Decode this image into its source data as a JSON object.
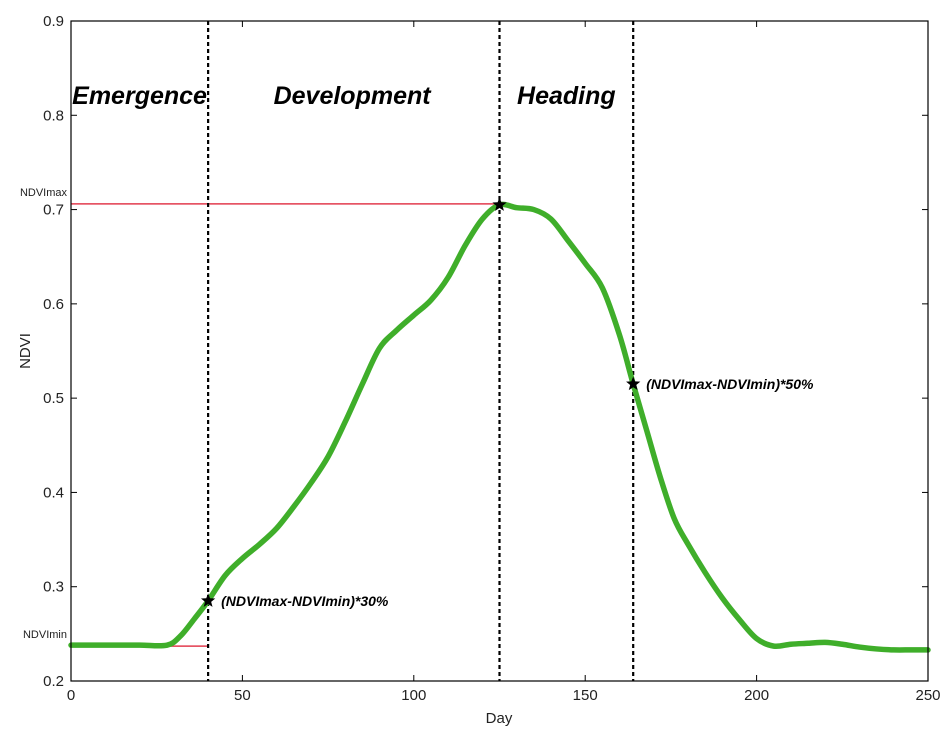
{
  "chart_data": {
    "type": "line",
    "title": "",
    "xlabel": "Day",
    "ylabel": "NDVI",
    "xlim": [
      0,
      250
    ],
    "ylim": [
      0.2,
      0.9
    ],
    "xticks": [
      0,
      50,
      100,
      150,
      200,
      250
    ],
    "yticks": [
      0.2,
      0.3,
      0.4,
      0.5,
      0.6,
      0.7,
      0.8,
      0.9
    ],
    "x_tick_labels": [
      "0",
      "50",
      "100",
      "150",
      "200",
      "250"
    ],
    "y_tick_labels": [
      "0.2",
      "0.3",
      "0.4",
      "0.5",
      "0.6",
      "0.7",
      "0.8",
      "0.9"
    ],
    "grid": false,
    "series": [
      {
        "color": "#3fae2a",
        "x": [
          0,
          10,
          20,
          28,
          32,
          36,
          40,
          45,
          50,
          55,
          60,
          65,
          70,
          75,
          80,
          85,
          90,
          95,
          100,
          105,
          110,
          115,
          120,
          125,
          130,
          135,
          140,
          145,
          150,
          155,
          160,
          164,
          168,
          172,
          176,
          180,
          185,
          190,
          195,
          200,
          205,
          210,
          215,
          220,
          225,
          230,
          235,
          240,
          245,
          250
        ],
        "y": [
          0.238,
          0.238,
          0.238,
          0.238,
          0.248,
          0.266,
          0.285,
          0.312,
          0.33,
          0.345,
          0.362,
          0.385,
          0.41,
          0.438,
          0.475,
          0.515,
          0.553,
          0.572,
          0.588,
          0.604,
          0.628,
          0.662,
          0.69,
          0.705,
          0.702,
          0.7,
          0.69,
          0.667,
          0.643,
          0.617,
          0.567,
          0.515,
          0.465,
          0.415,
          0.372,
          0.345,
          0.315,
          0.288,
          0.265,
          0.245,
          0.237,
          0.239,
          0.24,
          0.241,
          0.239,
          0.236,
          0.234,
          0.233,
          0.233,
          0.233
        ]
      }
    ],
    "reference_lines": {
      "color": "#e23b4e",
      "ndvi_max": {
        "label": "NDVImax",
        "value": 0.706,
        "x_end": 125
      },
      "ndvi_min": {
        "label": "NDVImin",
        "value": 0.237,
        "x_end": 40
      }
    },
    "dividers": [
      40,
      125,
      164
    ],
    "phases": [
      {
        "label": "Emergence",
        "x": 20
      },
      {
        "label": "Development",
        "x": 82
      },
      {
        "label": "Heading",
        "x": 144.5
      }
    ],
    "markers": [
      {
        "x": 40,
        "y": 0.285,
        "label": "(NDVImax-NDVImin)*30%"
      },
      {
        "x": 125,
        "y": 0.705,
        "label": ""
      },
      {
        "x": 164,
        "y": 0.515,
        "label": "(NDVImax-NDVImin)*50%"
      }
    ]
  }
}
